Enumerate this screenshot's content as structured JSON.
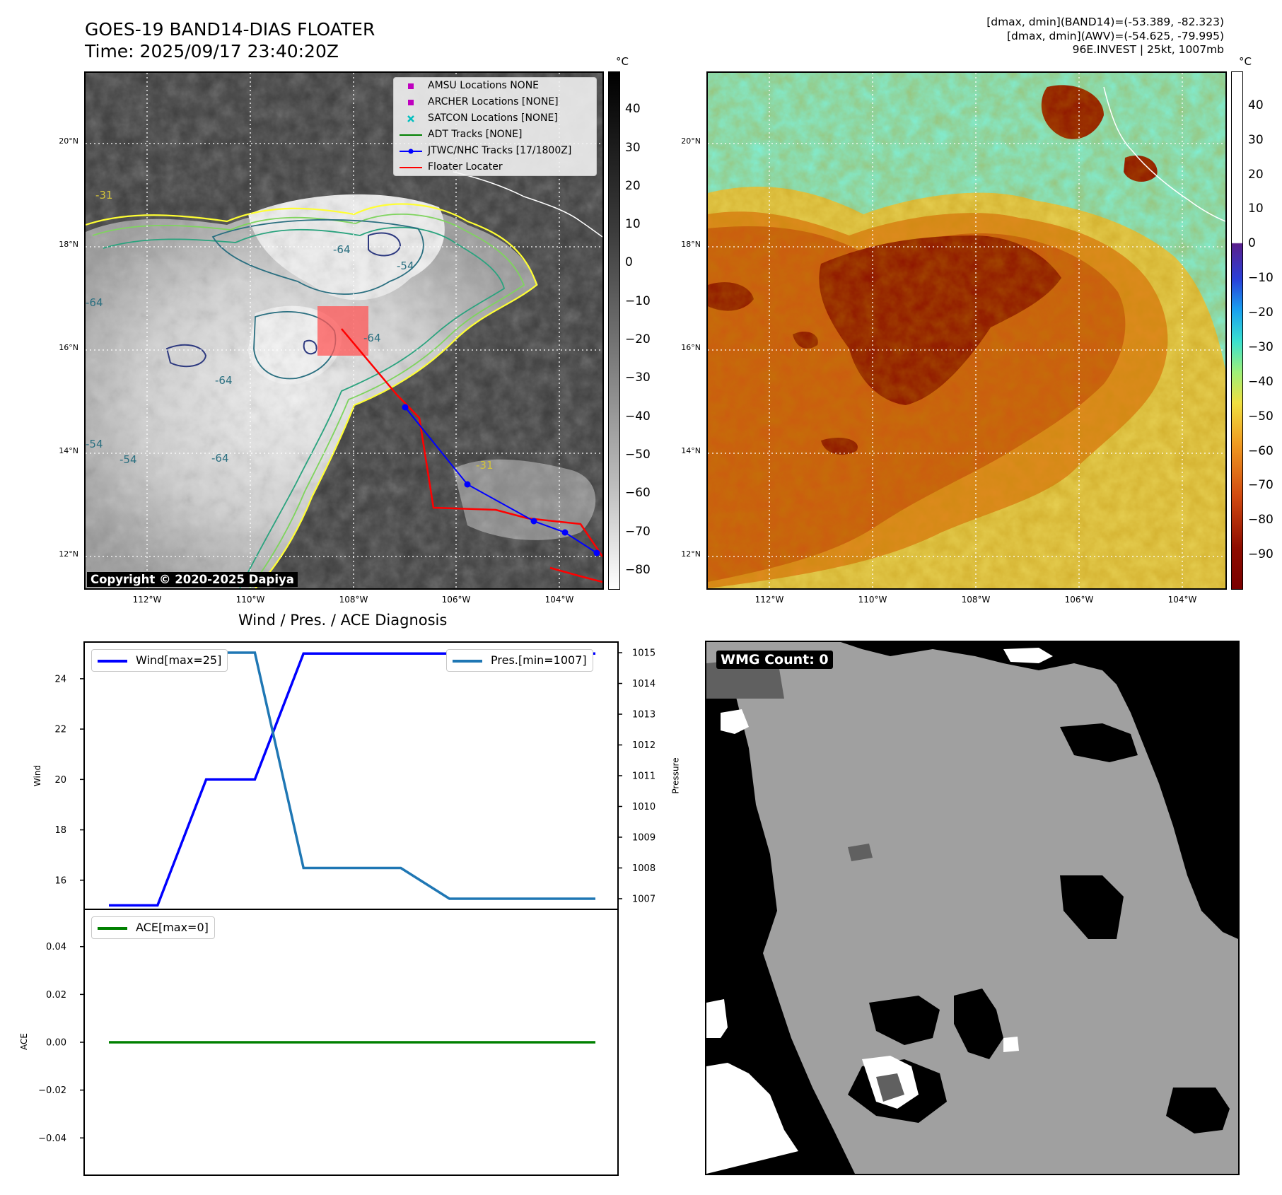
{
  "header": {
    "title_line1": "GOES-19 BAND14-DIAS FLOATER",
    "title_line2": "Time: 2025/09/17 23:40:20Z",
    "info_line1": "[dmax, dmin](BAND14)=(-53.389, -82.323)",
    "info_line2": "[dmax, dmin](AWV)=(-54.625, -79.995)",
    "info_line3": "96E.INVEST | 25kt, 1007mb"
  },
  "map_left": {
    "lat_ticks": [
      "20°N",
      "18°N",
      "16°N",
      "14°N",
      "12°N"
    ],
    "lon_ticks": [
      "112°W",
      "110°W",
      "108°W",
      "106°W",
      "104°W"
    ],
    "contour_labels": [
      "-64",
      "-64",
      "-64",
      "-64",
      "-54",
      "-54",
      "-54",
      "-31",
      "-31",
      "-64"
    ],
    "copyright": "Copyright © 2020-2025 Dapiya",
    "legend": [
      {
        "label": "AMSU Locations NONE",
        "color": "#bf00bf",
        "marker": "square"
      },
      {
        "label": "ARCHER Locations [NONE]",
        "color": "#bf00bf",
        "marker": "square"
      },
      {
        "label": "SATCON Locations [NONE]",
        "color": "#00bfbf",
        "marker": "x"
      },
      {
        "label": "ADT Tracks [NONE]",
        "color": "#008000",
        "marker": "line"
      },
      {
        "label": "JTWC/NHC Tracks [17/1800Z]",
        "color": "#0000ff",
        "marker": "line-dot"
      },
      {
        "label": "Floater Locater",
        "color": "#ff0000",
        "marker": "line"
      }
    ],
    "colorbar_unit": "°C",
    "colorbar_ticks": [
      "40",
      "30",
      "20",
      "10",
      "0",
      "−10",
      "−20",
      "−30",
      "−40",
      "−50",
      "−60",
      "−70",
      "−80"
    ]
  },
  "map_right": {
    "lat_ticks": [
      "20°N",
      "18°N",
      "16°N",
      "14°N",
      "12°N"
    ],
    "lon_ticks": [
      "112°W",
      "110°W",
      "108°W",
      "106°W",
      "104°W"
    ],
    "colorbar_unit": "°C",
    "colorbar_ticks": [
      "40",
      "30",
      "20",
      "10",
      "0",
      "−10",
      "−20",
      "−30",
      "−40",
      "−50",
      "−60",
      "−70",
      "−80",
      "−90"
    ]
  },
  "diagnosis": {
    "title": "Wind / Pres. / ACE Diagnosis",
    "wind_legend": "Wind[max=25]",
    "pres_legend": "Pres.[min=1007]",
    "ace_legend": "ACE[max=0]",
    "wind_ylabel": "Wind",
    "pres_ylabel": "Pressure",
    "ace_ylabel": "ACE",
    "wind_colors": {
      "wind": "#0000ff",
      "pres": "#1f77b4",
      "ace": "#008000"
    }
  },
  "wmg": {
    "count_label": "WMG Count: 0"
  },
  "chart_data": [
    {
      "type": "line",
      "title": "",
      "ylabel": "Wind",
      "ylim": [
        14.9,
        25.4
      ],
      "yticks": [
        16,
        18,
        20,
        22,
        24
      ],
      "x": [
        0,
        1,
        2,
        3,
        4,
        5,
        6,
        7,
        8,
        9,
        10
      ],
      "series": [
        {
          "name": "Wind[max=25]",
          "values": [
            15,
            15,
            20,
            20,
            25,
            25,
            25,
            25,
            25,
            25,
            25
          ]
        }
      ]
    },
    {
      "type": "line",
      "ylabel": "Pressure",
      "ylim": [
        1006.7,
        1015.3
      ],
      "yticks": [
        1007,
        1008,
        1009,
        1010,
        1011,
        1012,
        1013,
        1014,
        1015
      ],
      "x": [
        0,
        1,
        2,
        3,
        4,
        5,
        6,
        7,
        8,
        9,
        10
      ],
      "series": [
        {
          "name": "Pres.[min=1007]",
          "values": [
            1015,
            1015,
            1015,
            1015,
            1008,
            1008,
            1008,
            1007,
            1007,
            1007,
            1007
          ]
        }
      ]
    },
    {
      "type": "line",
      "ylabel": "ACE",
      "ylim": [
        -0.055,
        0.055
      ],
      "yticks": [
        -0.04,
        -0.02,
        0.0,
        0.02,
        0.04
      ],
      "yticklabels": [
        "−0.04",
        "−0.02",
        "0.00",
        "0.02",
        "0.04"
      ],
      "x": [
        0,
        1,
        2,
        3,
        4,
        5,
        6,
        7,
        8,
        9,
        10
      ],
      "series": [
        {
          "name": "ACE[max=0]",
          "values": [
            0,
            0,
            0,
            0,
            0,
            0,
            0,
            0,
            0,
            0,
            0
          ]
        }
      ]
    }
  ]
}
